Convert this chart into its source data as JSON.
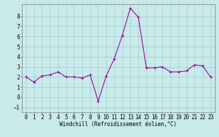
{
  "x": [
    0,
    1,
    2,
    3,
    4,
    5,
    6,
    7,
    8,
    9,
    10,
    11,
    12,
    13,
    14,
    15,
    16,
    17,
    18,
    19,
    20,
    21,
    22,
    23
  ],
  "y": [
    2.0,
    1.5,
    2.1,
    2.2,
    2.5,
    2.0,
    2.0,
    1.9,
    2.2,
    -0.4,
    2.1,
    3.8,
    6.1,
    8.8,
    7.9,
    2.9,
    2.9,
    3.0,
    2.5,
    2.5,
    2.6,
    3.2,
    3.1,
    2.0
  ],
  "line_color": "#990099",
  "marker": "+",
  "marker_size": 3,
  "marker_linewidth": 0.8,
  "line_width": 0.8,
  "bg_color": "#c8eaea",
  "grid_color": "#a0c8c8",
  "xlabel": "Windchill (Refroidissement éolien,°C)",
  "xlabel_fontsize": 5.5,
  "tick_fontsize": 5.5,
  "ylim": [
    -1.5,
    9.2
  ],
  "xlim": [
    -0.5,
    23.5
  ],
  "yticks": [
    -1,
    0,
    1,
    2,
    3,
    4,
    5,
    6,
    7,
    8
  ],
  "xticks": [
    0,
    1,
    2,
    3,
    4,
    5,
    6,
    7,
    8,
    9,
    10,
    11,
    12,
    13,
    14,
    15,
    16,
    17,
    18,
    19,
    20,
    21,
    22,
    23
  ]
}
